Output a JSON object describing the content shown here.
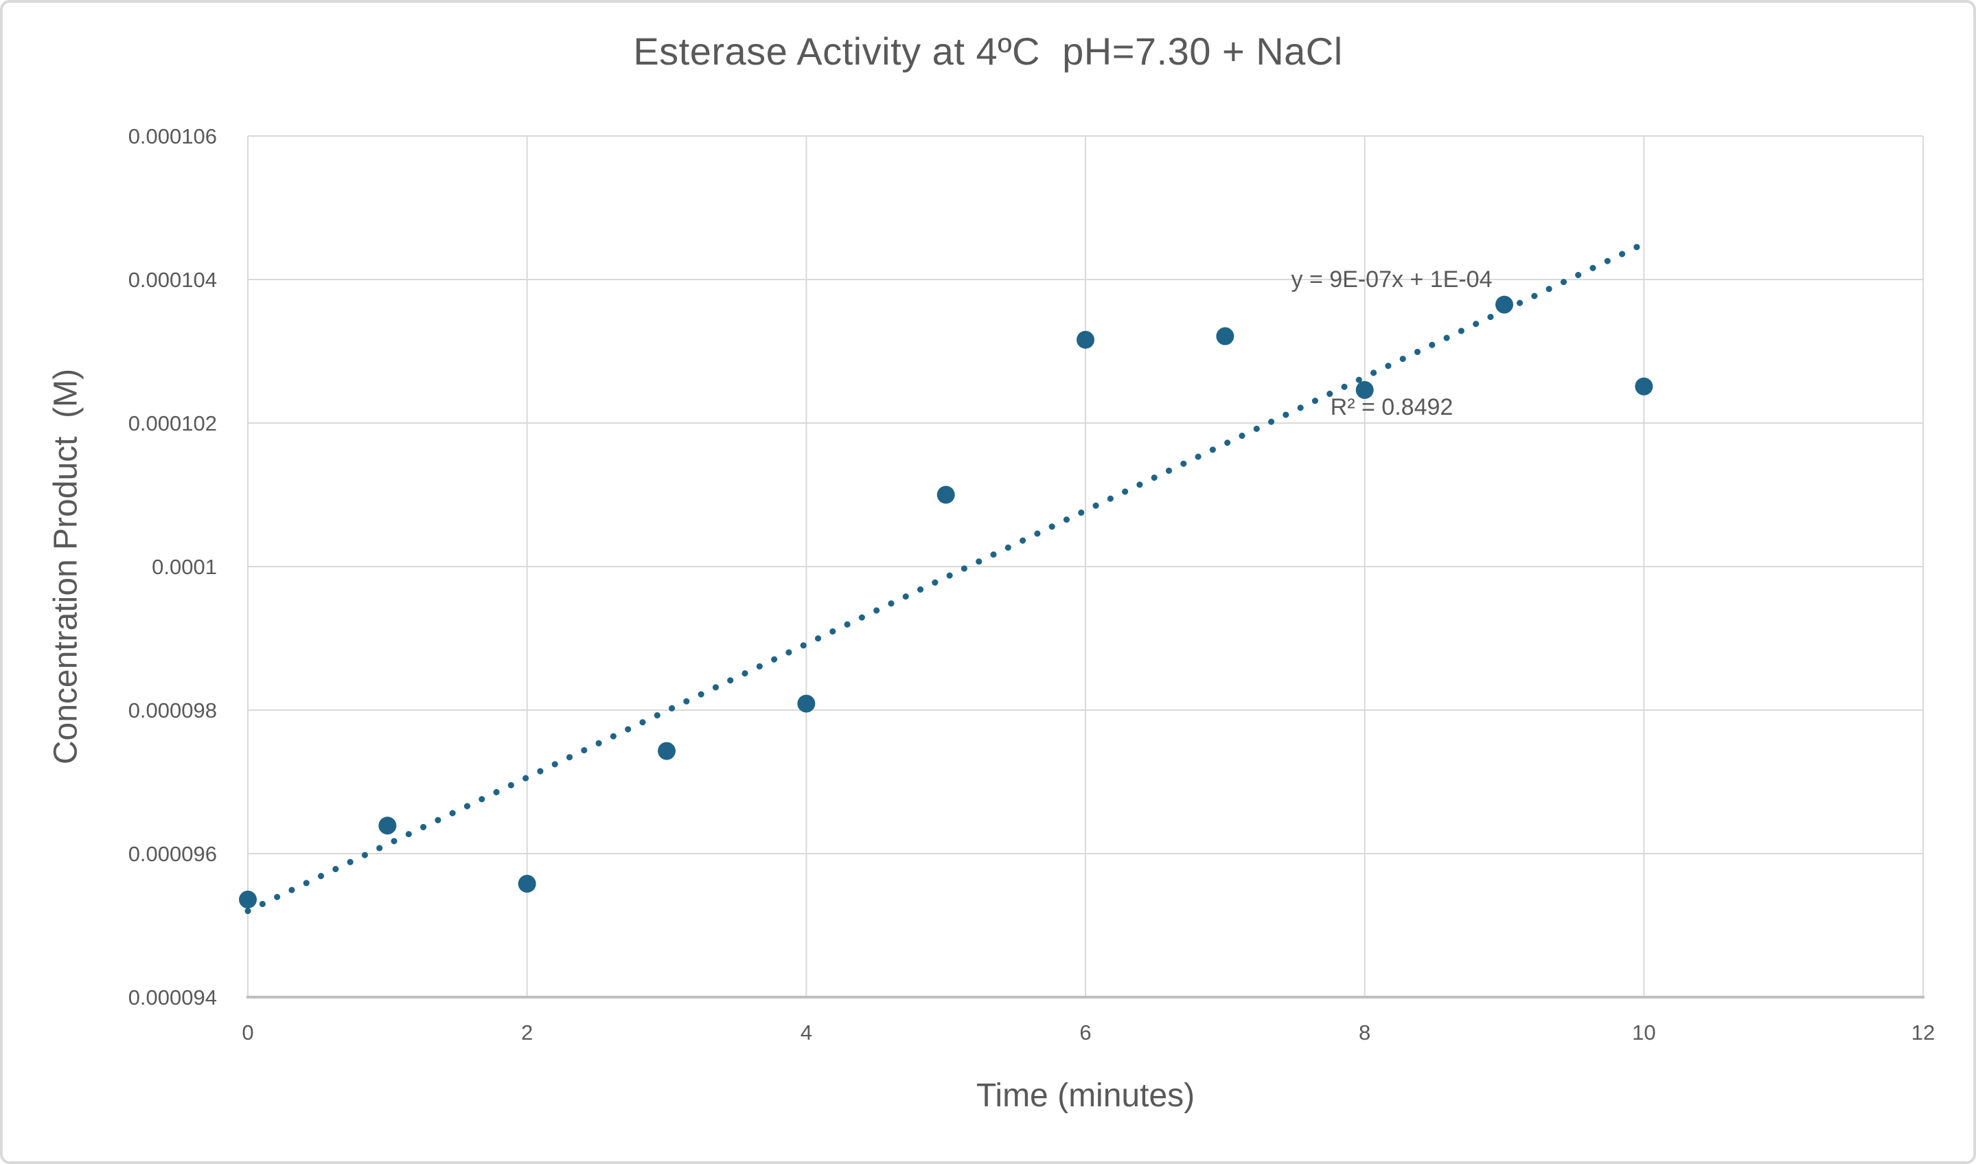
{
  "chart": {
    "title": "Esterase Activity at 4ºC  pH=7.30 + NaCl",
    "x_axis": {
      "title": "Time (minutes)",
      "tick_labels": [
        "0",
        "2",
        "4",
        "6",
        "8",
        "10",
        "12"
      ]
    },
    "y_axis": {
      "title": "Concentration Product  (M)",
      "tick_labels": [
        "0.000106",
        "0.000104",
        "0.000102",
        "0.0001",
        "0.000098",
        "0.000096",
        "0.000094"
      ]
    },
    "annotation": {
      "equation": "y = 9E-07x + 1E-04",
      "r_squared": "R² = 0.8492"
    }
  },
  "chart_data": {
    "type": "scatter",
    "title": "Esterase Activity at 4ºC  pH=7.30 + NaCl",
    "xlabel": "Time (minutes)",
    "ylabel": "Concentration Product  (M)",
    "x": [
      0,
      1,
      2,
      3,
      4,
      5,
      6,
      7,
      8,
      9,
      10
    ],
    "y": [
      9.536e-05,
      9.639e-05,
      9.558e-05,
      9.743e-05,
      9.809e-05,
      0.000101,
      0.00010316,
      0.00010321,
      0.00010246,
      0.00010365,
      0.00010251
    ],
    "xlim": [
      0,
      12
    ],
    "ylim": [
      9.4e-05,
      0.000106
    ],
    "x_ticks": [
      0,
      2,
      4,
      6,
      8,
      10,
      12
    ],
    "x_tick_labels": [
      "0",
      "2",
      "4",
      "6",
      "8",
      "10",
      "12"
    ],
    "y_ticks": [
      9.4e-05,
      9.6e-05,
      9.8e-05,
      0.0001,
      0.000102,
      0.000104,
      0.000106
    ],
    "y_tick_labels": [
      "0.000094",
      "0.000096",
      "0.000098",
      "0.0001",
      "0.000102",
      "0.000104",
      "0.000106"
    ],
    "grid": true,
    "legend": false,
    "marker": {
      "shape": "circle",
      "radius_px": 13
    },
    "trendline": {
      "type": "linear",
      "style": "dotted",
      "slope": 9.3e-07,
      "intercept": 9.52e-05,
      "x_start": 0,
      "x_end": 10,
      "equation_label": "y = 9E-07x + 1E-04",
      "r2_label": "R² = 0.8492"
    },
    "colors": {
      "marker": "#1F6488",
      "trendline": "#1F6488",
      "gridline": "#D9D9D9",
      "axis_line": "#BFBFBF",
      "text": "#595959",
      "background": "#FFFFFF",
      "border": "#D9D9D9"
    }
  }
}
